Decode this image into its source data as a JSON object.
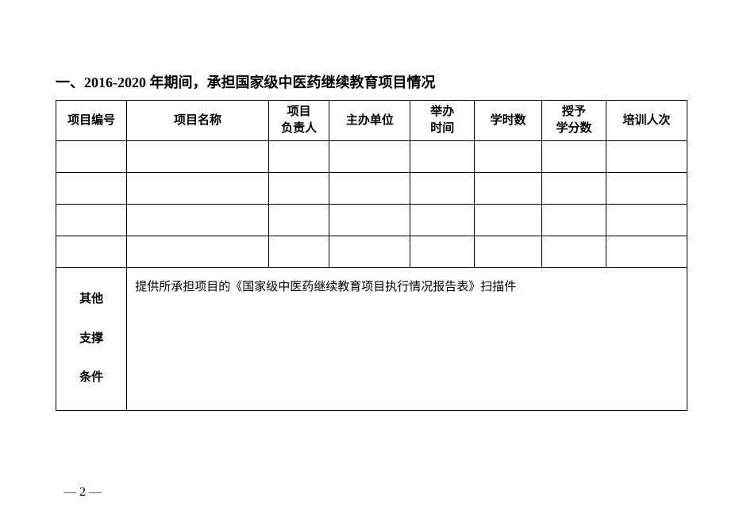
{
  "section": {
    "title": "一、2016-2020 年期间，承担国家级中医药继续教育项目情况"
  },
  "table": {
    "type": "table",
    "columns": [
      {
        "label": "项目编号",
        "width": "10.5%"
      },
      {
        "label": "项目名称",
        "width": "21%"
      },
      {
        "label": "项目\n负责人",
        "width": "9%"
      },
      {
        "label": "主办单位",
        "width": "12%"
      },
      {
        "label": "举办\n时间",
        "width": "9.5%"
      },
      {
        "label": "学时数",
        "width": "10%"
      },
      {
        "label": "授予\n学分数",
        "width": "9.5%"
      },
      {
        "label": "培训人次",
        "width": "12%"
      }
    ],
    "rows": [
      [
        "",
        "",
        "",
        "",
        "",
        "",
        "",
        ""
      ],
      [
        "",
        "",
        "",
        "",
        "",
        "",
        "",
        ""
      ],
      [
        "",
        "",
        "",
        "",
        "",
        "",
        "",
        ""
      ],
      [
        "",
        "",
        "",
        "",
        "",
        "",
        "",
        ""
      ]
    ],
    "support": {
      "label_chars": [
        "其他",
        "支撑",
        "条件"
      ],
      "content": "提供所承担项目的《国家级中医药继续教育项目执行情况报告表》扫描件"
    },
    "border_color": "#000000",
    "background_color": "#ffffff",
    "header_fontsize": 15,
    "cell_fontsize": 15
  },
  "footer": {
    "page_number": "— 2 —"
  }
}
